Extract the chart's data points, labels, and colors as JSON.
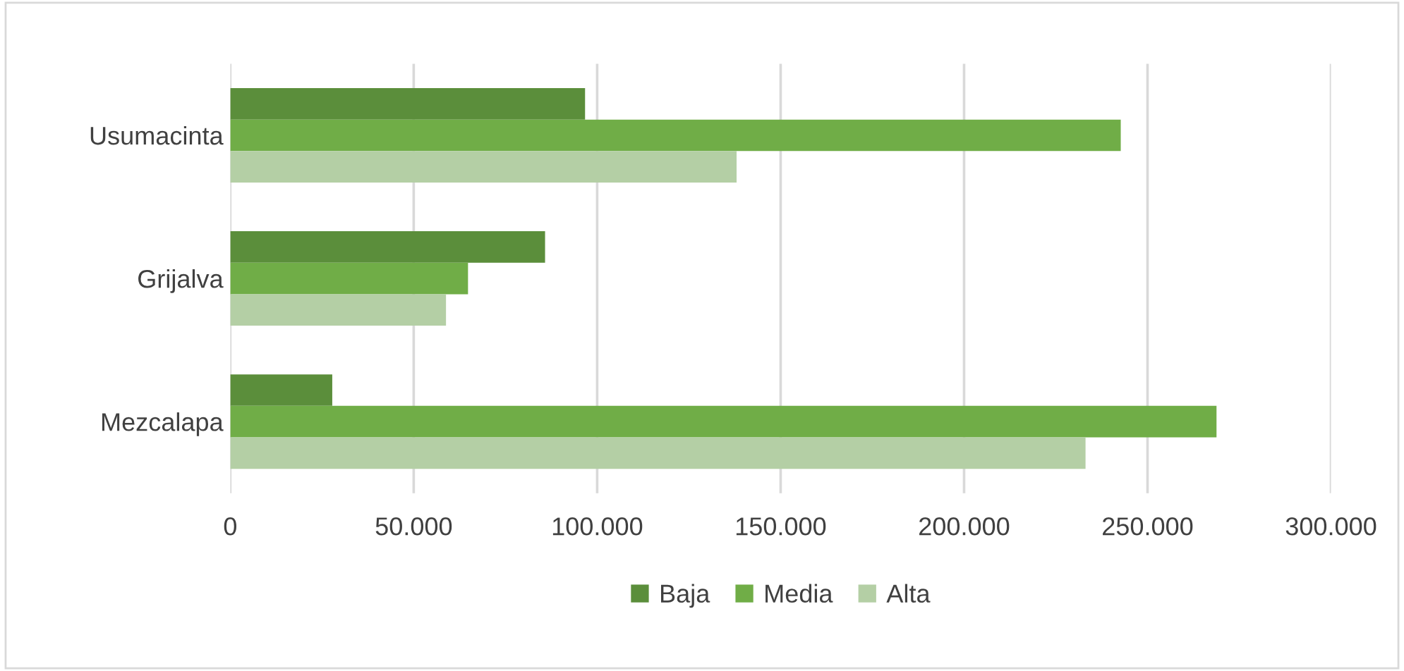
{
  "chart_data": {
    "type": "bar",
    "orientation": "horizontal",
    "categories": [
      "Usumacinta",
      "Grijalva",
      "Mezcalapa"
    ],
    "series": [
      {
        "name": "Baja",
        "color": "#5b8e3b",
        "values": [
          96700,
          85800,
          27800
        ]
      },
      {
        "name": "Media",
        "color": "#70ad47",
        "values": [
          242700,
          64800,
          268800
        ]
      },
      {
        "name": "Alta",
        "color": "#b4cfa5",
        "values": [
          138000,
          58800,
          233100
        ]
      }
    ],
    "xlim": [
      0,
      300000
    ],
    "xticks": [
      0,
      {
        "value": 50000,
        "label": "50.000"
      },
      {
        "value": 100000,
        "label": "100.000"
      },
      {
        "value": 150000,
        "label": "150.000"
      },
      {
        "value": 200000,
        "label": "200.000"
      },
      {
        "value": 250000,
        "label": "250.000"
      },
      {
        "value": 300000,
        "label": "300.000"
      }
    ],
    "grid": "x",
    "legend": "bottom"
  }
}
